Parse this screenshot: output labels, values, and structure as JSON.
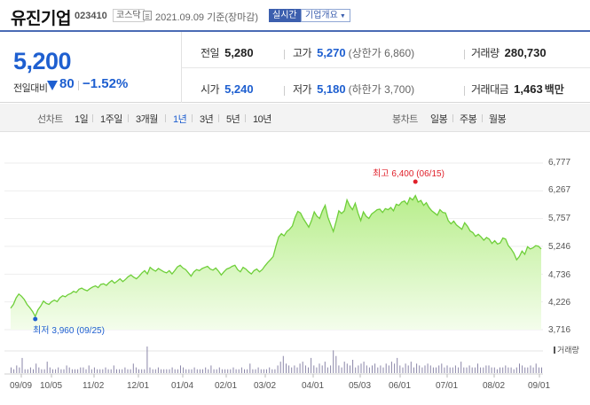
{
  "header": {
    "name": "유진기업",
    "code": "023410",
    "market": "코스닥",
    "date": "2021.09.09 기준(장마감)",
    "realtime": "실시간",
    "company_overview": "기업개요"
  },
  "summary": {
    "price": "5,200",
    "change_label": "전일대비",
    "change_value": "80",
    "change_pct": "−1.52%",
    "prev_close": {
      "label": "전일",
      "value": "5,280"
    },
    "high": {
      "label": "고가",
      "value": "5,270",
      "sub": "(상한가 6,860)"
    },
    "volume": {
      "label": "거래량",
      "value": "280,730"
    },
    "open": {
      "label": "시가",
      "value": "5,240"
    },
    "low": {
      "label": "저가",
      "value": "5,180",
      "sub": "(하한가 3,700)"
    },
    "trade_value": {
      "label": "거래대금",
      "value": "1,463",
      "unit": "백만"
    }
  },
  "tabs": {
    "line_chart": "선차트",
    "periods": [
      "1일",
      "1주일",
      "3개월",
      "1년",
      "3년",
      "5년",
      "10년"
    ],
    "active_period": "1년",
    "candle_chart": "봉차트",
    "candles": [
      "일봉",
      "주봉",
      "월봉"
    ]
  },
  "chart_data": {
    "type": "area",
    "y_ticks": [
      "6,777",
      "6,267",
      "5,757",
      "5,246",
      "4,736",
      "4,226",
      "3,716"
    ],
    "ylim": [
      3716,
      6777
    ],
    "x_ticks": [
      "09/09",
      "10/05",
      "11/02",
      "12/01",
      "01/04",
      "02/01",
      "03/02",
      "04/01",
      "05/03",
      "06/01",
      "07/01",
      "08/02",
      "09/01"
    ],
    "high_label": "최고",
    "high_value": "6,400 (06/15)",
    "low_label": "최저",
    "low_value": "3,960 (09/25)",
    "volume_legend": "거래량",
    "colors": {
      "line": "#6fcf3a",
      "fill_top": "#b8ee8c",
      "fill_bottom": "#f4fdec",
      "high": "#e0202a",
      "low": "#1e5fd0"
    },
    "series": [
      {
        "values": [
          4110,
          4180,
          4300,
          4370,
          4330,
          4270,
          4180,
          4120,
          4050,
          3960,
          4080,
          4150,
          4240,
          4200,
          4180,
          4230,
          4260,
          4230,
          4300,
          4340,
          4320,
          4360,
          4380,
          4420,
          4400,
          4460,
          4480,
          4450,
          4430,
          4470,
          4500,
          4520,
          4490,
          4550,
          4560,
          4530,
          4580,
          4620,
          4570,
          4610,
          4650,
          4600,
          4640,
          4690,
          4720,
          4680,
          4650,
          4700,
          4760,
          4800,
          4740,
          4860,
          4820,
          4790,
          4840,
          4810,
          4780,
          4760,
          4800,
          4740,
          4800,
          4870,
          4900,
          4850,
          4820,
          4760,
          4700,
          4780,
          4820,
          4800,
          4840,
          4860,
          4880,
          4830,
          4810,
          4850,
          4790,
          4720,
          4780,
          4830,
          4850,
          4880,
          4900,
          4820,
          4780,
          4860,
          4830,
          4780,
          4740,
          4800,
          4830,
          4780,
          4820,
          4890,
          4950,
          5000,
          5060,
          5250,
          5420,
          5480,
          5440,
          5520,
          5560,
          5620,
          5780,
          5890,
          5860,
          5760,
          5680,
          5600,
          5720,
          5880,
          5800,
          5760,
          5900,
          6000,
          5780,
          5650,
          5520,
          5700,
          5900,
          5850,
          5900,
          6100,
          5990,
          5920,
          6040,
          5860,
          5720,
          5880,
          5800,
          5760,
          5840,
          5880,
          5920,
          5930,
          5870,
          5940,
          5920,
          5960,
          5900,
          6020,
          6000,
          6060,
          6080,
          6020,
          6140,
          6100,
          6180,
          6060,
          6090,
          6000,
          6050,
          5960,
          5900,
          5860,
          5820,
          5920,
          5870,
          5860,
          5720,
          5660,
          5710,
          5640,
          5600,
          5560,
          5680,
          5620,
          5530,
          5500,
          5430,
          5470,
          5420,
          5360,
          5410,
          5380,
          5300,
          5350,
          5290,
          5310,
          5400,
          5380,
          5260,
          5200,
          5120,
          5000,
          5060,
          5160,
          5100,
          5240,
          5200,
          5220,
          5260,
          5250,
          5200
        ]
      }
    ],
    "volume": [
      3,
      2,
      4,
      3,
      8,
      2,
      2,
      3,
      2,
      5,
      3,
      2,
      2,
      6,
      3,
      2,
      2,
      3,
      2,
      2,
      4,
      3,
      2,
      2,
      2,
      3,
      3,
      2,
      4,
      2,
      3,
      2,
      2,
      2,
      3,
      2,
      2,
      4,
      2,
      2,
      2,
      3,
      2,
      2,
      5,
      3,
      2,
      2,
      2,
      14,
      3,
      2,
      2,
      3,
      2,
      2,
      2,
      2,
      3,
      2,
      2,
      4,
      3,
      2,
      2,
      2,
      3,
      2,
      2,
      2,
      3,
      2,
      4,
      2,
      2,
      3,
      2,
      2,
      2,
      2,
      3,
      2,
      2,
      3,
      2,
      2,
      5,
      2,
      2,
      3,
      2,
      2,
      2,
      3,
      2,
      2,
      4,
      6,
      9,
      5,
      4,
      3,
      4,
      3,
      5,
      6,
      4,
      3,
      8,
      4,
      3,
      5,
      4,
      6,
      3,
      4,
      12,
      9,
      4,
      3,
      6,
      5,
      4,
      7,
      3,
      4,
      5,
      6,
      4,
      3,
      4,
      5,
      3,
      4,
      3,
      5,
      4,
      6,
      5,
      8,
      4,
      3,
      5,
      4,
      6,
      3,
      5,
      4,
      3,
      4,
      5,
      4,
      3,
      3,
      4,
      5,
      3,
      4,
      3,
      3,
      4,
      3,
      6,
      3,
      3,
      4,
      3,
      3,
      5,
      3,
      3,
      4,
      4,
      3,
      3,
      2,
      3,
      3,
      4,
      3,
      3,
      2,
      3,
      5,
      4,
      3,
      3,
      4,
      3,
      5,
      3,
      3
    ]
  }
}
